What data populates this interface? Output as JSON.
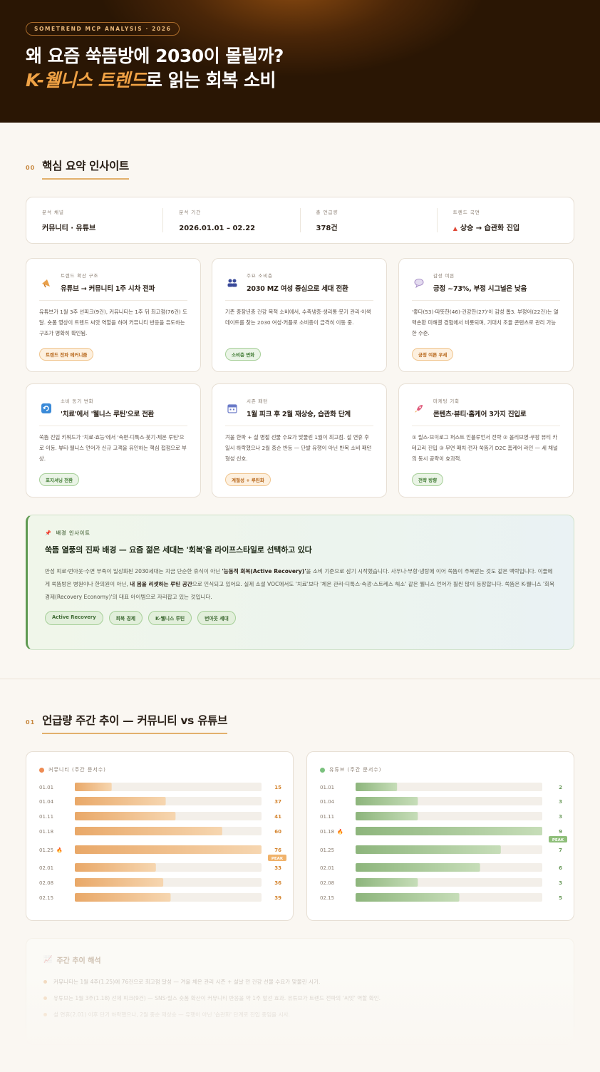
{
  "hero": {
    "tag": "SOMETREND MCP ANALYSIS · 2026",
    "title_line1": "왜 요즘 쑥뜸방에 2030이 몰릴까?",
    "title_accent": "K-웰니스 트렌드",
    "title_rest": "로 읽는 회복 소비"
  },
  "section0": {
    "num": "00",
    "title": "핵심 요약 인사이트"
  },
  "summary": [
    {
      "label": "분석 채널",
      "value": "커뮤니티 · 유튜브"
    },
    {
      "label": "분석 기간",
      "value": "2026.01.01 – 02.22"
    },
    {
      "label": "총 언급량",
      "value": "378건"
    },
    {
      "label": "트렌드 국면",
      "value": "상승 → 습관화 진입",
      "icon": "up-triangle-icon"
    }
  ],
  "cards": [
    {
      "kicker": "트렌드 확산 구조",
      "title": "유튜브 → 커뮤니티 1주 시차 전파",
      "body": "유튜브가 1월 3주 선피크(9건), 커뮤니티는 1주 뒤 최고점(76건) 도달. 숏폼 영상이 트렌드 씨앗 역할을 하며 커뮤니티 반응을 유도하는 구조가 명확히 확인됨.",
      "pill": "트렌드 전파 메커니즘",
      "pill_color": "orange",
      "icon": "megaphone-icon"
    },
    {
      "kicker": "주요 소비층",
      "title": "2030 MZ 여성 중심으로 세대 전환",
      "body": "기존 중장년층 건강 목적 소비에서, 수족냉증·생리통·붓기 관리·이색 데이트를 찾는 2030 여성·커플로 소비층이 급격히 이동 중.",
      "pill": "소비층 변화",
      "pill_color": "green",
      "icon": "people-icon"
    },
    {
      "kicker": "감성 여론",
      "title": "긍정 ~73%, 부정 시그널은 낮음",
      "body": "'좋다(53)·따뜻한(46)·건강한(27)'이 감성 톱3. 부정어(22건)는 열맥손환 미해결 경험에서 비롯되며, 기대치 조율 콘텐츠로 관리 가능한 수준.",
      "pill": "긍정 여론 우세",
      "pill_color": "orange",
      "icon": "speech-bubble-icon"
    },
    {
      "kicker": "소비 동기 변화",
      "title": "'치료'에서 '웰니스 루틴'으로 전환",
      "body": "쑥뜸 진입 키워드가 '치료·효능'에서 '속편·디톡스·붓기·체온 루틴'으로 이동. 뷰티·웰니스 언어가 신규 고객을 유인하는 핵심 접점으로 부상.",
      "pill": "포지셔닝 전환",
      "pill_color": "green",
      "icon": "refresh-icon"
    },
    {
      "kicker": "시즌 패턴",
      "title": "1월 피크 후 2월 재상승, 습관화 단계",
      "body": "겨울 한파 + 설 명절 선물 수요가 맞물린 1월이 최고점. 설 연휴 후 일시 하락했으나 2월 중순 반등 — 단발 유행이 아닌 반복 소비 패턴 형성 신호.",
      "pill": "계절성 + 루틴화",
      "pill_color": "orange",
      "icon": "calendar-icon"
    },
    {
      "kicker": "마케팅 기회",
      "title": "콘텐츠·뷰티·홈케어 3가지 진입로",
      "body": "① 릴스·브이로그 퍼스트 인플루언서 전략 ② 올리브영·쿠팡 뷰티 카테고리 진입 ③ 무연 패치·전자 쑥뜸기 D2C 홈케어 라인 — 세 채널의 동시 공략이 효과적.",
      "pill": "전략 방향",
      "pill_color": "green",
      "icon": "rocket-icon"
    }
  ],
  "background": {
    "kicker": "배경 인사이트",
    "icon": "pushpin-icon",
    "title": "쑥뜸 열풍의 진짜 배경 — 요즘 젊은 세대는 '회복'을 라이프스타일로 선택하고 있다",
    "body_p1": "만성 피로·번아웃·수면 부족이 일상화된 2030세대는 지금 단순한 휴식이 아닌 ",
    "body_b1": "'능동적 회복(Active Recovery)'",
    "body_p2": "을 소비 기준으로 삼기 시작했습니다. 사우나·부항·냉탕에 이어 쑥뜸이 주목받는 것도 같은 맥락입니다. 이들에게 쑥뜸방은 병원이나 한의원이 아닌, ",
    "body_b2": "내 몸을 리셋하는 루틴 공간",
    "body_p3": "으로 인식되고 있어요. 실제 소셜 VOC에서도 '치료'보다 '체온 관리·디톡스·속광·스트레스 해소' 같은 웰니스 언어가 훨씬 많이 등장합니다. 쑥뜸은 K-웰니스 '회복 경제(Recovery Economy)'의 대표 아이템으로 자리잡고 있는 것입니다.",
    "tags": [
      "Active Recovery",
      "회복 경제",
      "K-웰니스 루틴",
      "번아웃 세대"
    ]
  },
  "section1": {
    "num": "01",
    "title": "언급량 주간 추이 — 커뮤니티 vs 유튜브"
  },
  "chart_data": [
    {
      "type": "bar",
      "orientation": "horizontal",
      "title": "커뮤니티 (주간 문서수)",
      "color": "#e9a868",
      "legend_color": "#ee8b53",
      "categories": [
        "01.01",
        "01.04",
        "01.11",
        "01.18",
        "01.25",
        "02.01",
        "02.08",
        "02.15"
      ],
      "values": [
        15,
        37,
        41,
        60,
        76,
        33,
        36,
        39
      ],
      "xlim": [
        0,
        76
      ],
      "peak_index": 4,
      "peak_label": "PEAK"
    },
    {
      "type": "bar",
      "orientation": "horizontal",
      "title": "유튜브 (주간 문서수)",
      "color": "#8db57c",
      "legend_color": "#7bc17e",
      "categories": [
        "01.01",
        "01.04",
        "01.11",
        "01.18",
        "01.25",
        "02.01",
        "02.08",
        "02.15"
      ],
      "values": [
        2,
        3,
        3,
        9,
        7,
        6,
        3,
        5
      ],
      "xlim": [
        0,
        9
      ],
      "peak_index": 3,
      "peak_label": "PEAK"
    }
  ],
  "interpretation": {
    "title": "주간 추이 해석",
    "icon": "chart-icon",
    "items": [
      "커뮤니티는 1월 4주(1.25)에 76건으로 최고점 달성 — 겨울 체온 관리 시즌 + 설날 전 건강 선물 수요가 맞물린 시기.",
      "유튜브는 1월 3주(1.18) 선제 피크(9건) — SNS·릴스 숏폼 확산이 커뮤니티 반응을 약 1주 앞선 효과. 유튜브가 트렌드 전파의 '씨앗' 역할 확인.",
      "설 연휴(2.01) 이후 단기 하락했으나, 2월 중순 재상승 — 유행이 아닌 '습관화' 단계로 진입 중임을 시사."
    ]
  }
}
